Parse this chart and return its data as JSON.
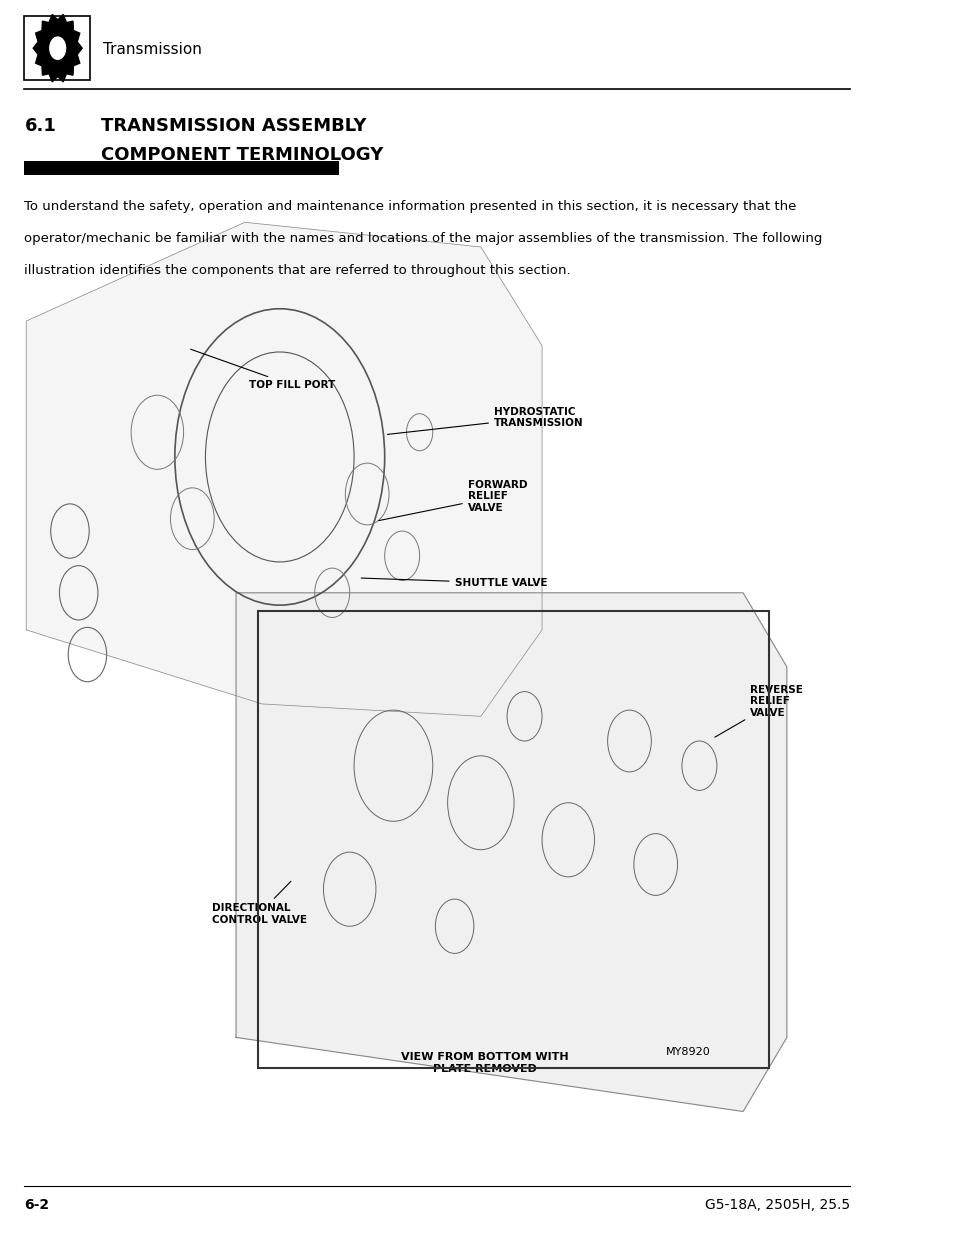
{
  "bg_color": "#ffffff",
  "header_title": "Transmission",
  "section_number": "6.1",
  "section_title_line1": "TRANSMISSION ASSEMBLY",
  "section_title_line2": "COMPONENT TERMINOLOGY",
  "body_text_line1": "To understand the safety, operation and maintenance information presented in this section, it is necessary that the",
  "body_text_line2": "operator/mechanic be familiar with the names and locations of the major assemblies of the transmission. The following",
  "body_text_line3": "illustration identifies the components that are referred to throughout this section.",
  "footer_left": "6-2",
  "footer_right": "G5-18A, 2505H, 25.5"
}
